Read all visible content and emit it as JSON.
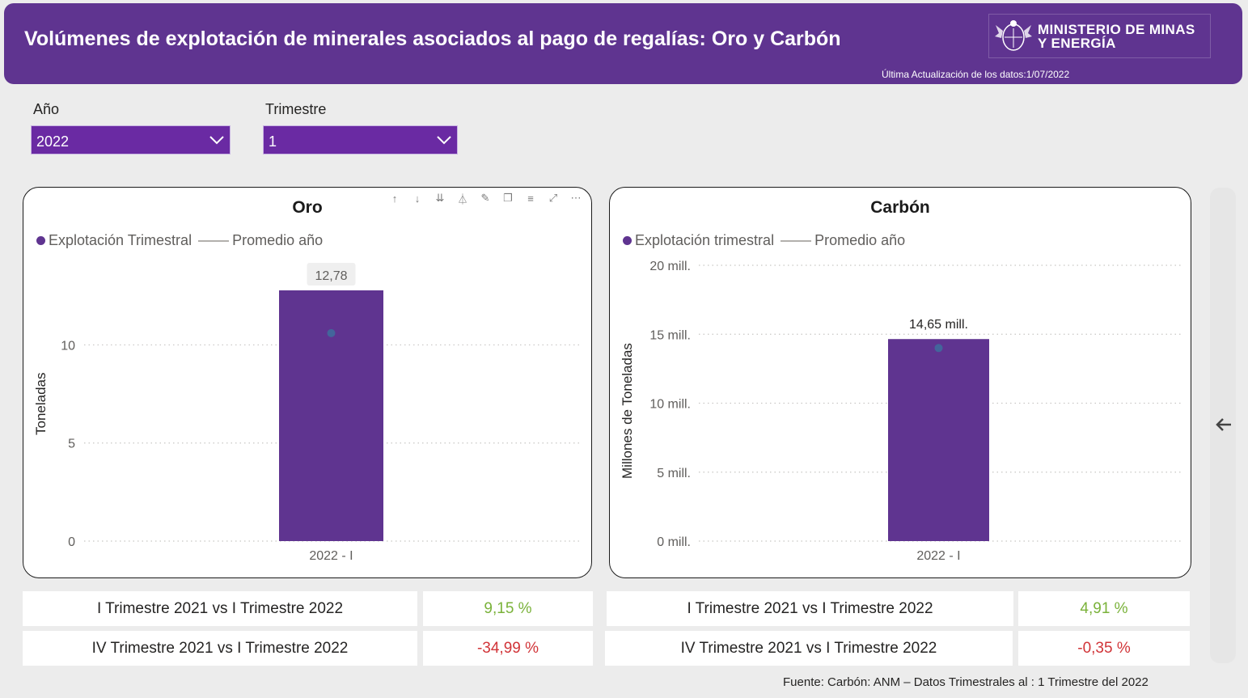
{
  "header": {
    "title": "Volúmenes de explotación de minerales asociados al pago de regalías: Oro y Carbón",
    "logo_line1": "MINISTERIO DE MINAS",
    "logo_line2": "Y ENERGÍA",
    "updated": "Última Actualización de los datos:1/07/2022"
  },
  "filters": {
    "year_label": "Año",
    "year_value": "2022",
    "quarter_label": "Trimestre",
    "quarter_value": "1"
  },
  "colors": {
    "brand": "#5f3490",
    "positive": "#7ab23a",
    "negative": "#d13438"
  },
  "oro": {
    "legend_bar": "Explotación Trimestral",
    "legend_line": "Promedio año",
    "comparisons": [
      {
        "label": "I Trimestre 2021 vs I Trimestre 2022",
        "value": "9,15 %"
      },
      {
        "label": "IV Trimestre 2021 vs I Trimestre 2022",
        "value": "-34,99 %"
      }
    ]
  },
  "carbon": {
    "legend_bar": "Explotación trimestral",
    "legend_line": "Promedio año",
    "comparisons": [
      {
        "label": "I Trimestre 2021 vs I Trimestre 2022",
        "value": "4,91 %"
      },
      {
        "label": "IV Trimestre 2021 vs I Trimestre 2022",
        "value": "-0,35 %"
      }
    ]
  },
  "chart_data": [
    {
      "type": "bar",
      "title": "Oro",
      "ylabel": "Toneladas",
      "xlabel": "",
      "categories": [
        "2022 - I"
      ],
      "series": [
        {
          "name": "Explotación Trimestral",
          "values": [
            12.78
          ]
        },
        {
          "name": "Promedio año",
          "values": [
            10.6
          ]
        }
      ],
      "data_labels": [
        "12,78"
      ],
      "yticks": [
        "0",
        "5",
        "10"
      ],
      "ylim": [
        0,
        12.78
      ],
      "grid": true,
      "legend": "top-left"
    },
    {
      "type": "bar",
      "title": "Carbón",
      "ylabel": "Millones de Toneladas",
      "xlabel": "",
      "categories": [
        "2022 - I"
      ],
      "series": [
        {
          "name": "Explotación trimestral",
          "values": [
            14.65
          ]
        },
        {
          "name": "Promedio año",
          "values": [
            14.0
          ]
        }
      ],
      "data_labels": [
        "14,65 mill."
      ],
      "yticks": [
        "0 mill.",
        "5 mill.",
        "10 mill.",
        "15 mill.",
        "20 mill."
      ],
      "ylim": [
        0,
        20
      ],
      "grid": true,
      "legend": "top-left"
    }
  ],
  "footer": "Fuente: Carbón: ANM – Datos Trimestrales al : 1 Trimestre del 2022"
}
